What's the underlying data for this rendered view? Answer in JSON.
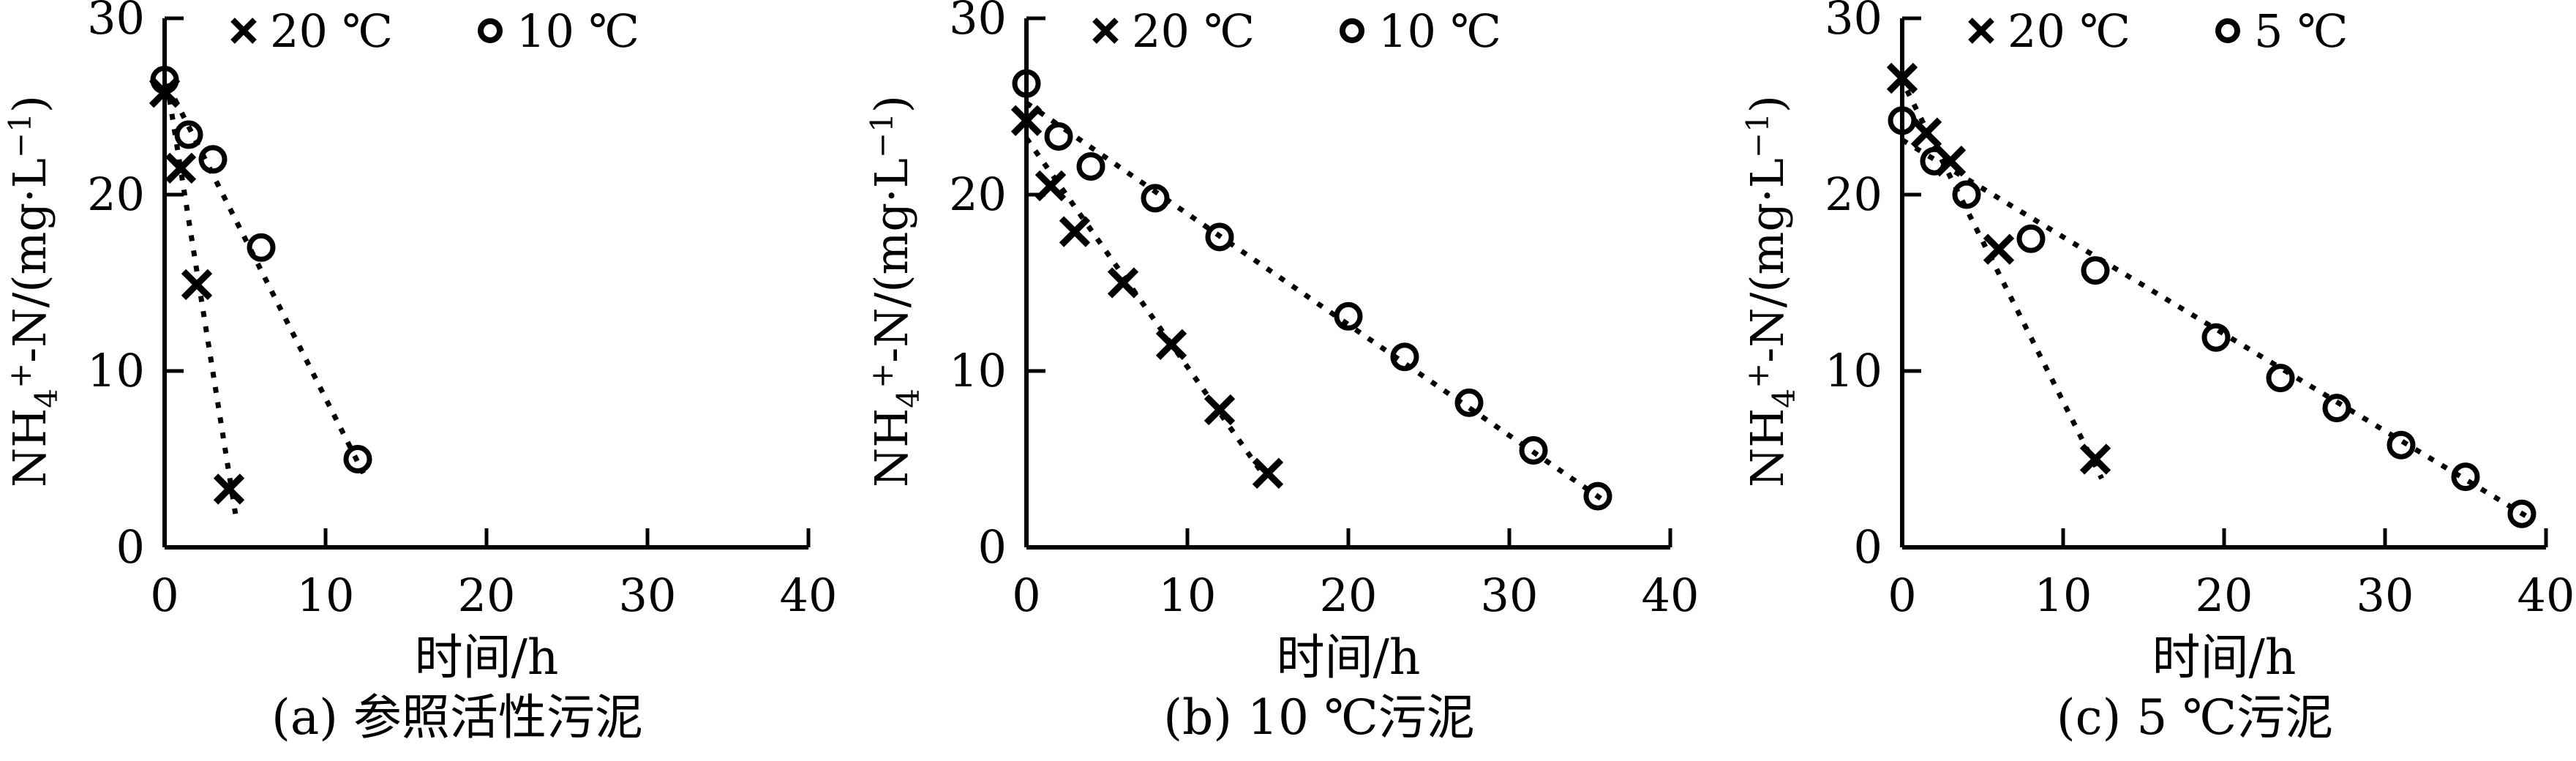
{
  "figure": {
    "ylabel_text": "NH4+-N/(mg·L−1)",
    "ylabel_parts": [
      {
        "t": "NH",
        "s": "base"
      },
      {
        "t": "4",
        "s": "sub"
      },
      {
        "t": "+",
        "s": "sup"
      },
      {
        "t": "-N/(mg·L",
        "s": "base"
      },
      {
        "t": "−1",
        "s": "sup"
      },
      {
        "t": ")",
        "s": "base"
      }
    ],
    "ink_color": "#000000",
    "background_color": "#ffffff"
  },
  "chart_data": [
    {
      "type": "scatter",
      "panel": "a",
      "caption": "(a) 参照活性污泥",
      "xlabel": "时间/h",
      "ylabel": "NH4+-N/(mg·L−1)",
      "xlim": [
        0,
        40
      ],
      "ylim": [
        0,
        30
      ],
      "xticks": [
        0,
        10,
        20,
        30,
        40
      ],
      "yticks": [
        0,
        10,
        20,
        30
      ],
      "grid": false,
      "legend_position": "top-inside",
      "legend": [
        {
          "marker": "x",
          "label": "20 ℃"
        },
        {
          "marker": "o",
          "label": "10 ℃"
        }
      ],
      "series": [
        {
          "name": "20 ℃",
          "marker": "x",
          "line": "dotted-fit",
          "points": [
            [
              0,
              25.8
            ],
            [
              1,
              21.5
            ],
            [
              2,
              14.9
            ],
            [
              4,
              3.3
            ]
          ],
          "fit_line": [
            [
              0.15,
              26.3
            ],
            [
              4.4,
              1.9
            ]
          ]
        },
        {
          "name": "10 ℃",
          "marker": "o",
          "line": "dotted-fit",
          "points": [
            [
              0,
              26.5
            ],
            [
              1.5,
              23.4
            ],
            [
              3,
              22.0
            ],
            [
              6,
              17.0
            ],
            [
              12,
              5.0
            ]
          ],
          "fit_line": [
            [
              0.2,
              26.2
            ],
            [
              12.35,
              4.2
            ]
          ]
        }
      ]
    },
    {
      "type": "scatter",
      "panel": "b",
      "caption": "(b) 10 ℃污泥",
      "xlabel": "时间/h",
      "ylabel": "NH4+-N/(mg·L−1)",
      "xlim": [
        0,
        40
      ],
      "ylim": [
        0,
        30
      ],
      "xticks": [
        0,
        10,
        20,
        30,
        40
      ],
      "yticks": [
        0,
        10,
        20,
        30
      ],
      "grid": false,
      "legend_position": "top-inside",
      "legend": [
        {
          "marker": "x",
          "label": "20 ℃"
        },
        {
          "marker": "o",
          "label": "10 ℃"
        }
      ],
      "series": [
        {
          "name": "20 ℃",
          "marker": "x",
          "line": "dotted-fit",
          "points": [
            [
              0,
              24.2
            ],
            [
              1.5,
              20.5
            ],
            [
              3,
              17.9
            ],
            [
              6,
              15.0
            ],
            [
              9,
              11.5
            ],
            [
              12,
              7.8
            ],
            [
              15,
              4.2
            ]
          ],
          "fit_line": [
            [
              0,
              23.2
            ],
            [
              14.5,
              4.4
            ]
          ]
        },
        {
          "name": "10 ℃",
          "marker": "o",
          "line": "dotted-fit",
          "points": [
            [
              0,
              26.3
            ],
            [
              2,
              23.3
            ],
            [
              4,
              21.6
            ],
            [
              8,
              19.8
            ],
            [
              12,
              17.6
            ],
            [
              20,
              13.1
            ],
            [
              23.5,
              10.8
            ],
            [
              27.5,
              8.2
            ],
            [
              31.5,
              5.5
            ],
            [
              35.5,
              2.9
            ]
          ],
          "fit_line": [
            [
              0,
              25.2
            ],
            [
              35.8,
              2.7
            ]
          ]
        }
      ]
    },
    {
      "type": "scatter",
      "panel": "c",
      "caption": "(c) 5 ℃污泥",
      "xlabel": "时间/h",
      "ylabel": "NH4+-N/(mg·L−1)",
      "xlim": [
        0,
        40
      ],
      "ylim": [
        0,
        30
      ],
      "xticks": [
        0,
        10,
        20,
        30,
        40
      ],
      "yticks": [
        0,
        10,
        20,
        30
      ],
      "grid": false,
      "legend_position": "top-inside",
      "legend": [
        {
          "marker": "x",
          "label": "20 ℃"
        },
        {
          "marker": "o",
          "label": "5 ℃"
        }
      ],
      "series": [
        {
          "name": "20 ℃",
          "marker": "x",
          "line": "dotted-fit",
          "points": [
            [
              0,
              26.6
            ],
            [
              1.5,
              23.5
            ],
            [
              3,
              21.9
            ],
            [
              6,
              16.9
            ],
            [
              12,
              5.0
            ]
          ],
          "fit_line": [
            [
              0.3,
              25.9
            ],
            [
              12.4,
              3.9
            ]
          ]
        },
        {
          "name": "5 ℃",
          "marker": "o",
          "line": "dotted-fit",
          "points": [
            [
              0,
              24.2
            ],
            [
              2,
              21.9
            ],
            [
              4,
              20.0
            ],
            [
              8,
              17.5
            ],
            [
              12,
              15.7
            ],
            [
              19.5,
              11.9
            ],
            [
              23.5,
              9.6
            ],
            [
              27,
              7.9
            ],
            [
              31,
              5.8
            ],
            [
              35,
              4.0
            ],
            [
              38.5,
              1.9
            ]
          ],
          "fit_line": [
            [
              0,
              23.1
            ],
            [
              38.9,
              1.7
            ]
          ]
        }
      ]
    }
  ]
}
